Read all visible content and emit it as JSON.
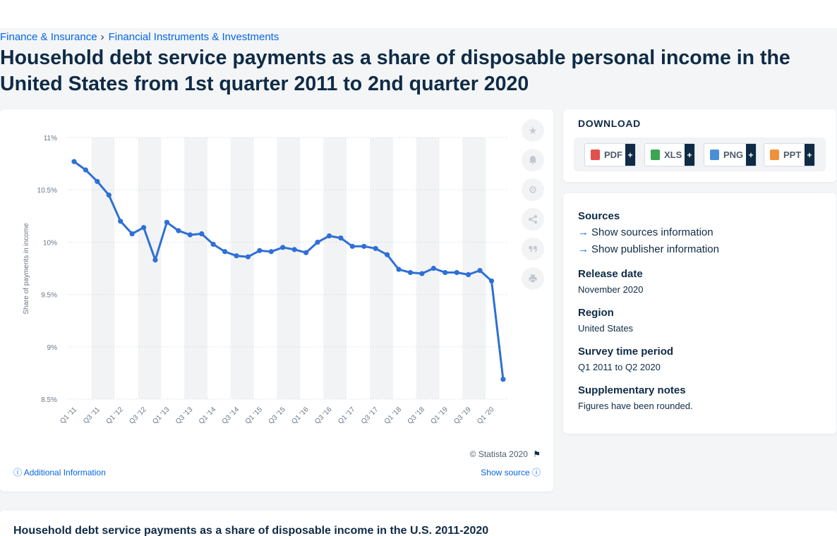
{
  "breadcrumb": {
    "items": [
      "Finance & Insurance",
      "Financial Instruments & Investments"
    ],
    "separator": "›"
  },
  "page_title": "Household debt service payments as a share of disposable personal income in the United States from 1st quarter 2011 to 2nd quarter 2020",
  "chart_card": {
    "copyright": "© Statista 2020",
    "additional_info": "Additional Information",
    "show_source": "Show source"
  },
  "download": {
    "title": "DOWNLOAD",
    "formats": [
      {
        "label": "PDF",
        "color": "#e0504d"
      },
      {
        "label": "XLS",
        "color": "#3aa655"
      },
      {
        "label": "PNG",
        "color": "#4a8fd6"
      },
      {
        "label": "PPT",
        "color": "#f0913a"
      }
    ],
    "plus": "+"
  },
  "info": {
    "sources_heading": "Sources",
    "show_sources": "Show sources information",
    "show_publisher": "Show publisher information",
    "release_date_heading": "Release date",
    "release_date": "November 2020",
    "region_heading": "Region",
    "region": "United States",
    "survey_heading": "Survey time period",
    "survey": "Q1 2011 to Q2 2020",
    "notes_heading": "Supplementary notes",
    "notes": "Figures have been rounded."
  },
  "bottom": {
    "title": "Household debt service payments as a share of disposable income in the U.S. 2011-2020"
  },
  "colors": {
    "accent": "#0666e5",
    "line": "#2f6fd6",
    "text": "#0f2b46",
    "band": "#f1f3f5"
  },
  "chart_data": {
    "type": "line",
    "ylabel": "Share of payments in income",
    "ylim": [
      8.5,
      11
    ],
    "yticks": [
      "8.5%",
      "9%",
      "9.5%",
      "10%",
      "10.5%",
      "11%"
    ],
    "ytick_values": [
      8.5,
      9,
      9.5,
      10,
      10.5,
      11
    ],
    "xtick_labels": [
      "Q1 '11",
      "Q3 '11",
      "Q1 '12",
      "Q3 '12",
      "Q1 '13",
      "Q3 '13",
      "Q1 '14",
      "Q3 '14",
      "Q1 '15",
      "Q3 '15",
      "Q1 '16",
      "Q3 '16",
      "Q1 '17",
      "Q3 '17",
      "Q1 '18",
      "Q3 '18",
      "Q1 '19",
      "Q3 '19",
      "Q1 '20"
    ],
    "categories": [
      "Q1 '11",
      "Q2 '11",
      "Q3 '11",
      "Q4 '11",
      "Q1 '12",
      "Q2 '12",
      "Q3 '12",
      "Q4 '12",
      "Q1 '13",
      "Q2 '13",
      "Q3 '13",
      "Q4 '13",
      "Q1 '14",
      "Q2 '14",
      "Q3 '14",
      "Q4 '14",
      "Q1 '15",
      "Q2 '15",
      "Q3 '15",
      "Q4 '15",
      "Q1 '16",
      "Q2 '16",
      "Q3 '16",
      "Q4 '16",
      "Q1 '17",
      "Q2 '17",
      "Q3 '17",
      "Q4 '17",
      "Q1 '18",
      "Q2 '18",
      "Q3 '18",
      "Q4 '18",
      "Q1 '19",
      "Q2 '19",
      "Q3 '19",
      "Q4 '19",
      "Q1 '20",
      "Q2 '20"
    ],
    "values": [
      10.77,
      10.69,
      10.58,
      10.45,
      10.2,
      10.08,
      10.14,
      9.83,
      10.19,
      10.11,
      10.07,
      10.08,
      9.98,
      9.91,
      9.87,
      9.86,
      9.92,
      9.91,
      9.95,
      9.93,
      9.9,
      10.0,
      10.06,
      10.04,
      9.96,
      9.96,
      9.94,
      9.88,
      9.74,
      9.71,
      9.7,
      9.75,
      9.71,
      9.71,
      9.69,
      9.73,
      9.63,
      8.69
    ],
    "grid": true
  }
}
